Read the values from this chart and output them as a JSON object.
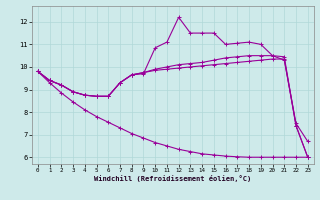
{
  "xlabel": "Windchill (Refroidissement éolien,°C)",
  "bg_color": "#ceeaea",
  "line_color": "#990099",
  "grid_color": "#b0d8d8",
  "xlim": [
    -0.5,
    23.5
  ],
  "ylim": [
    5.7,
    12.7
  ],
  "xticks": [
    0,
    1,
    2,
    3,
    4,
    5,
    6,
    7,
    8,
    9,
    10,
    11,
    12,
    13,
    14,
    15,
    16,
    17,
    18,
    19,
    20,
    21,
    22,
    23
  ],
  "yticks": [
    6,
    7,
    8,
    9,
    10,
    11,
    12
  ],
  "curve1_x": [
    0,
    1,
    2,
    3,
    4,
    5,
    6,
    7,
    8,
    9,
    10,
    11,
    12,
    13,
    14,
    15,
    16,
    17,
    18,
    19,
    20,
    21,
    22,
    23
  ],
  "curve1_y": [
    9.8,
    9.4,
    9.2,
    8.9,
    8.75,
    8.7,
    8.7,
    9.3,
    9.65,
    9.7,
    10.85,
    11.1,
    12.2,
    11.5,
    11.5,
    11.5,
    11.0,
    11.05,
    11.1,
    11.0,
    10.5,
    10.3,
    7.5,
    6.7
  ],
  "curve2_x": [
    0,
    1,
    2,
    3,
    4,
    5,
    6,
    7,
    8,
    9,
    10,
    11,
    12,
    13,
    14,
    15,
    16,
    17,
    18,
    19,
    20,
    21,
    22,
    23
  ],
  "curve2_y": [
    9.8,
    9.4,
    9.2,
    8.9,
    8.75,
    8.7,
    8.7,
    9.3,
    9.65,
    9.75,
    9.9,
    10.0,
    10.1,
    10.15,
    10.2,
    10.3,
    10.4,
    10.45,
    10.5,
    10.5,
    10.5,
    10.45,
    7.4,
    6.0
  ],
  "curve3_x": [
    0,
    1,
    2,
    3,
    4,
    5,
    6,
    7,
    8,
    9,
    10,
    11,
    12,
    13,
    14,
    15,
    16,
    17,
    18,
    19,
    20,
    21,
    22,
    23
  ],
  "curve3_y": [
    9.8,
    9.4,
    9.2,
    8.9,
    8.75,
    8.7,
    8.7,
    9.3,
    9.65,
    9.75,
    9.85,
    9.9,
    9.95,
    10.0,
    10.05,
    10.1,
    10.15,
    10.2,
    10.25,
    10.3,
    10.35,
    10.35,
    7.4,
    6.0
  ],
  "bottom_x": [
    0,
    1,
    2,
    3,
    4,
    5,
    6,
    7,
    8,
    9,
    10,
    11,
    12,
    13,
    14,
    15,
    16,
    17,
    18,
    19,
    20,
    21,
    22,
    23
  ],
  "bottom_y": [
    9.8,
    9.3,
    8.85,
    8.45,
    8.1,
    7.8,
    7.55,
    7.3,
    7.05,
    6.85,
    6.65,
    6.5,
    6.35,
    6.25,
    6.15,
    6.1,
    6.05,
    6.02,
    6.0,
    6.0,
    6.0,
    6.0,
    6.0,
    6.0
  ]
}
